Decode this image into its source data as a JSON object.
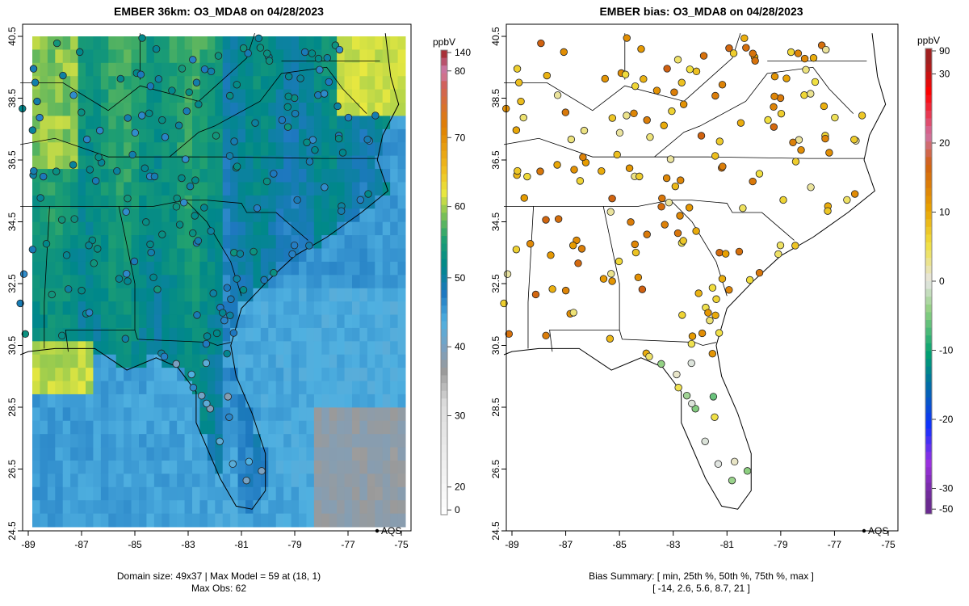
{
  "left_panel": {
    "title": "EMBER 36km: O3_MDA8 on 04/28/2023",
    "footer_line1": "Domain size: 49x37 | Max Model = 59 at (18, 1)",
    "footer_line2": "Max Obs: 62",
    "legend_label": "AQS",
    "colorbar": {
      "unit": "ppbV",
      "ticks": [
        "140",
        "80",
        "70",
        "60",
        "50",
        "40",
        "30",
        "20",
        "0"
      ]
    }
  },
  "right_panel": {
    "title": "EMBER bias: O3_MDA8 on 04/28/2023",
    "footer_line1": "Bias Summary: [ min, 25th %, 50th %, 75th %, max ]",
    "footer_line2": "[ -14,  2.6,  5.6,  8.7,  21 ]",
    "legend_label": "AQS",
    "colorbar": {
      "unit": "ppbV",
      "ticks": [
        "90",
        "30",
        "20",
        "10",
        "0",
        "-10",
        "-20",
        "-30",
        "-50"
      ]
    }
  },
  "axes": {
    "lat_ticks": [
      "40.5",
      "38.5",
      "36.5",
      "34.5",
      "32.5",
      "30.5",
      "28.5",
      "26.5",
      "24.5"
    ],
    "lon_ticks": [
      "-89",
      "-87",
      "-85",
      "-83",
      "-81",
      "-79",
      "-77",
      "-75"
    ]
  },
  "chart_data": {
    "type": "heatmap",
    "bias_summary": {
      "min": -14,
      "p25": 2.6,
      "p50": 5.6,
      "p75": 8.7,
      "max": 21
    },
    "max_model": 59,
    "max_obs": 62,
    "domain_size": "49x37",
    "colors": {
      "model_scale": [
        "#ffffff",
        "#dddddd",
        "#9a9a9a",
        "#7aa0c0",
        "#4fb0e0",
        "#1e78c0",
        "#00888a",
        "#20a070",
        "#90c850",
        "#e8e840",
        "#f0c020",
        "#e08000",
        "#d06060",
        "#d080b0",
        "#a02020"
      ],
      "bias_scale": [
        "#6a2a90",
        "#9b30e0",
        "#1030ff",
        "#0070a0",
        "#00a070",
        "#90d080",
        "#e6e6e6",
        "#f0e040",
        "#e8a000",
        "#d06010",
        "#d070a0",
        "#ff0000",
        "#a02020"
      ]
    }
  }
}
